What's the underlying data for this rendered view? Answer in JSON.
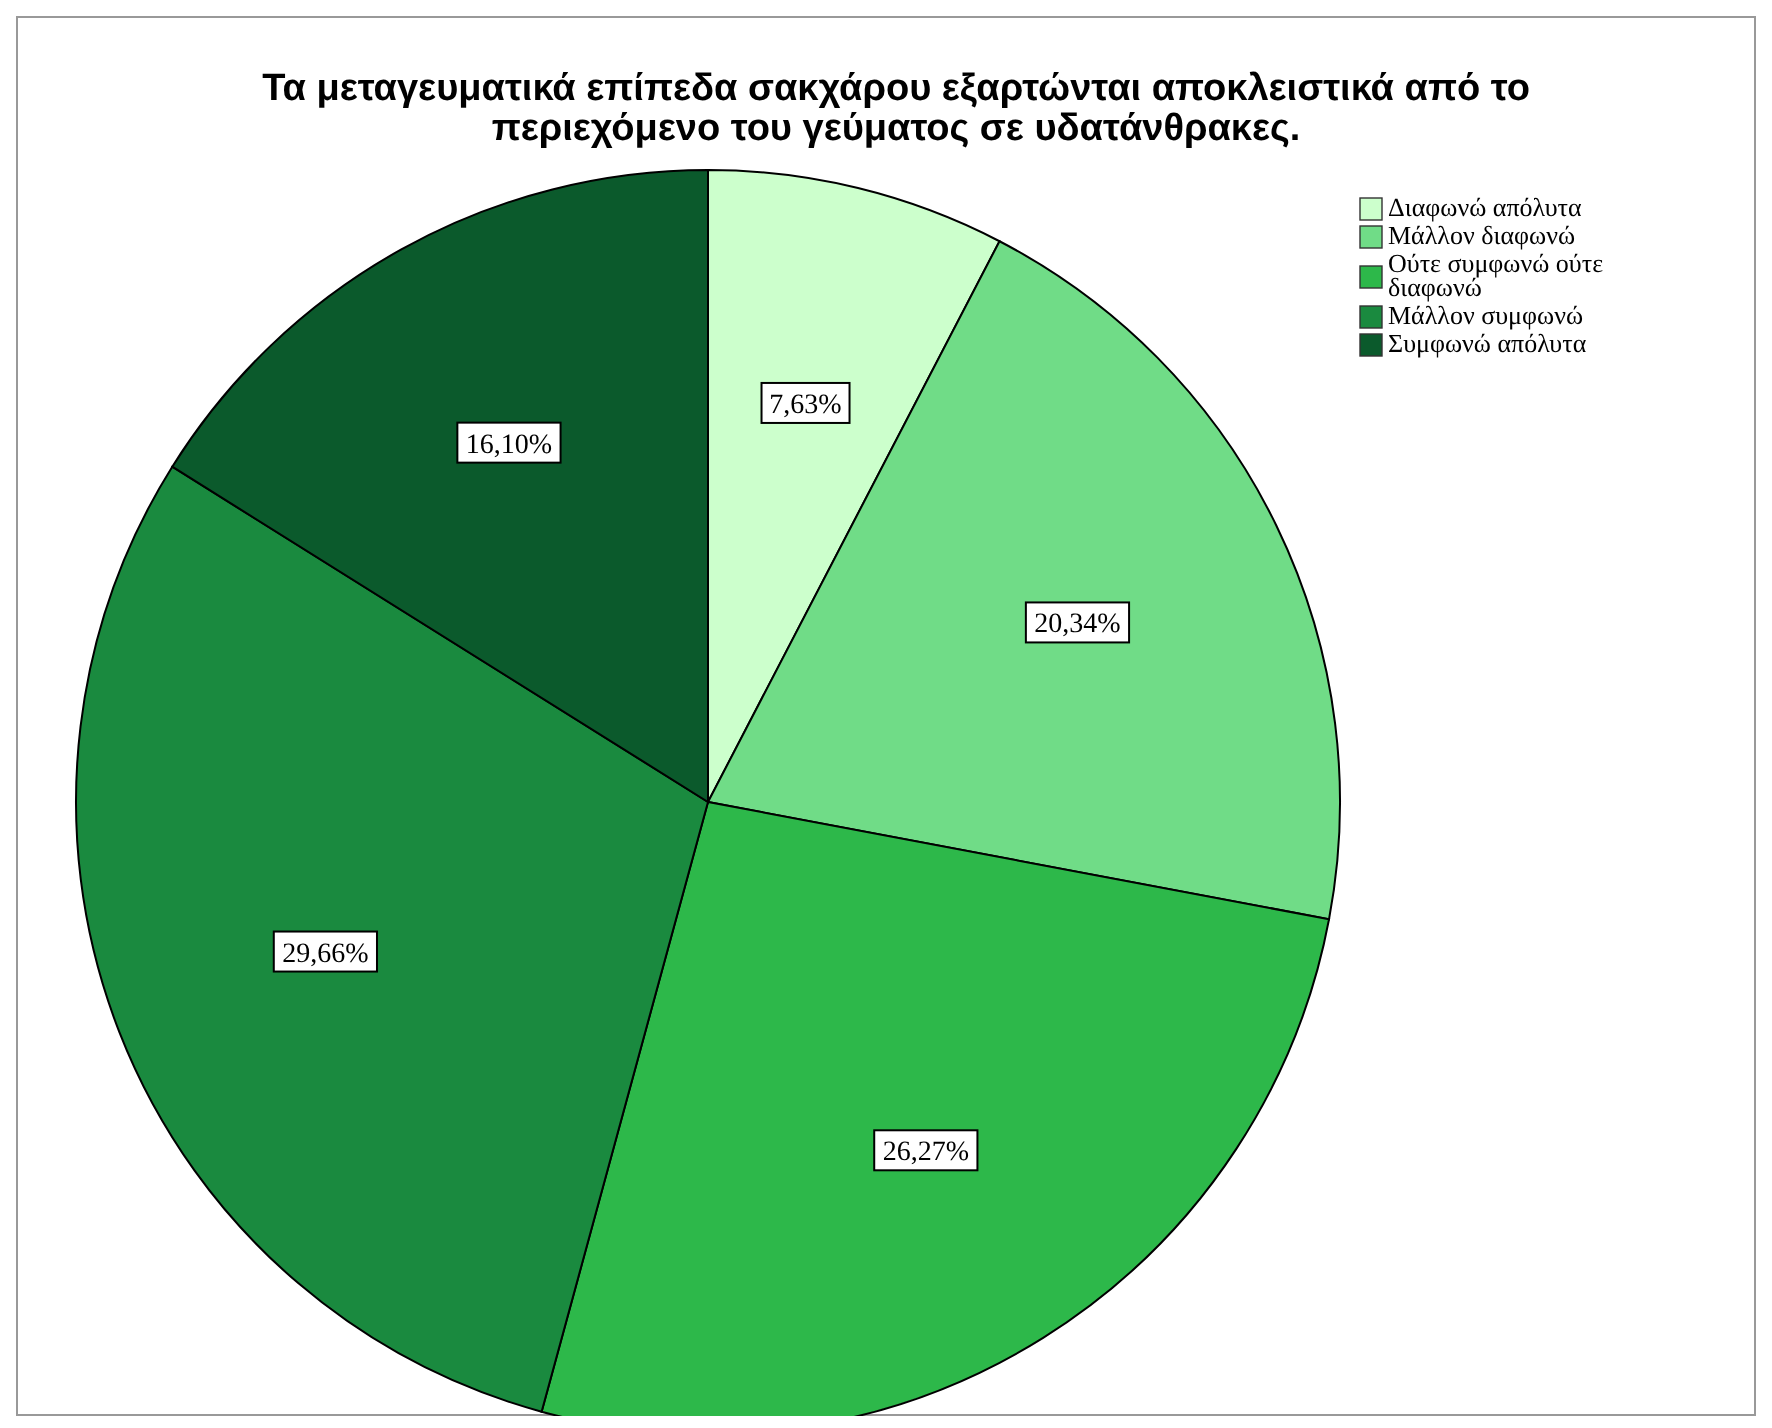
{
  "chart_data": {
    "type": "pie",
    "title": "Τα μεταγευματικά επίπεδα σακχάρου εξαρτώνται αποκλειστικά από το περιεχόμενο του γεύματος σε υδατάνθρακες.",
    "categories": [
      "Διαφωνώ απόλυτα",
      "Μάλλον διαφωνώ",
      "Ούτε συμφωνώ ούτε διαφωνώ",
      "Μάλλον συμφωνώ",
      "Συμφωνώ απόλυτα"
    ],
    "values": [
      7.63,
      20.34,
      26.27,
      29.66,
      16.1
    ],
    "value_labels": [
      "7,63%",
      "20,34%",
      "26,27%",
      "29,66%",
      "16,10%"
    ],
    "colors": [
      "#ccffcc",
      "#70dc87",
      "#2db84a",
      "#1a8a3f",
      "#0b5a2c"
    ],
    "legend": "top right"
  }
}
